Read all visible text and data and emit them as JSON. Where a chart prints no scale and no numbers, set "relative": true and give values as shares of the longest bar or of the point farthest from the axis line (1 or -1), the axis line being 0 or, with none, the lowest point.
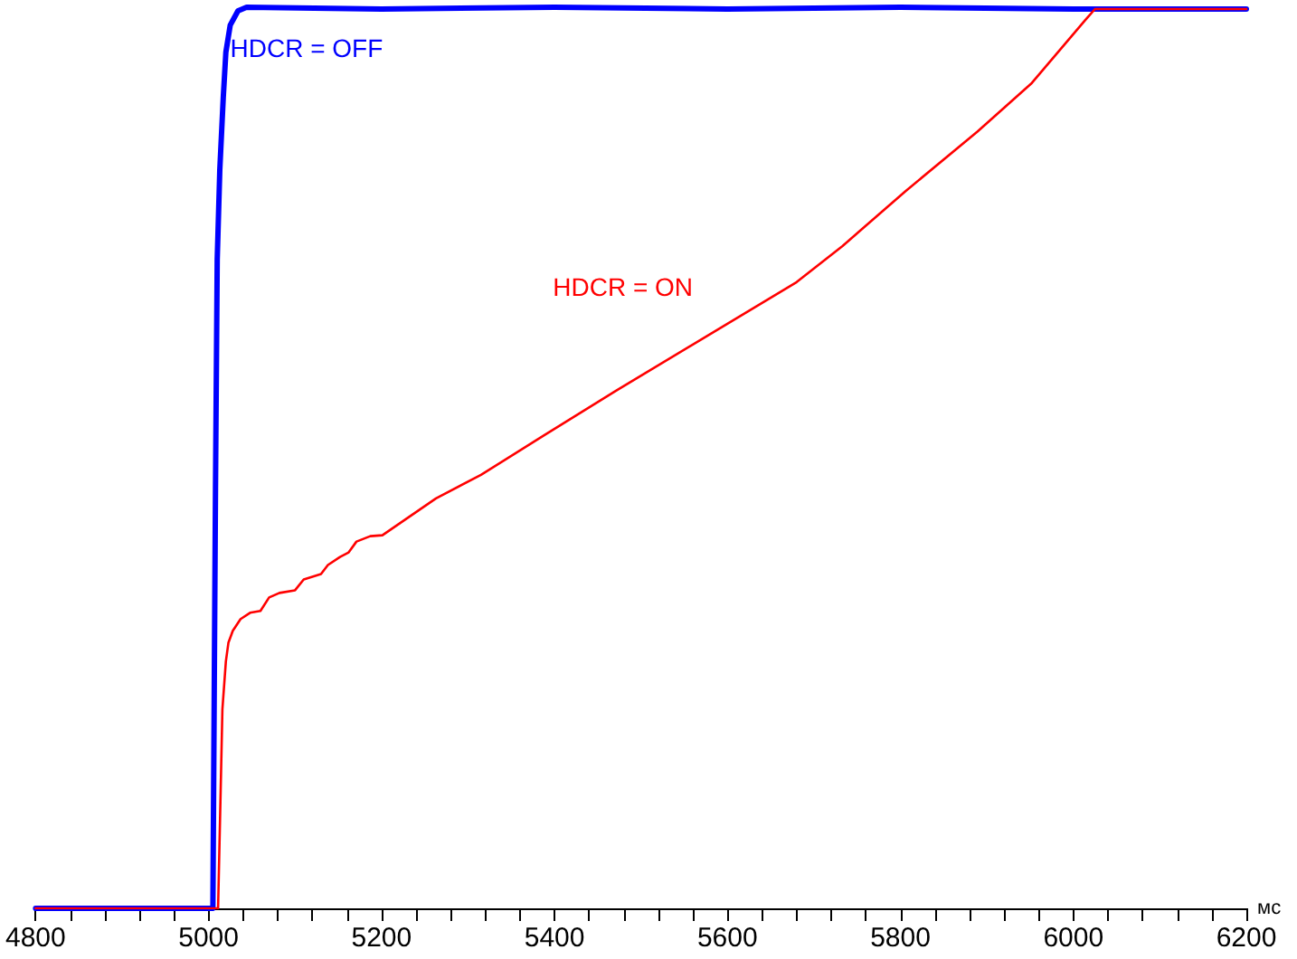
{
  "chart_data": {
    "type": "line",
    "relative": true,
    "xlabel": "мс",
    "xlim": [
      4800,
      6200
    ],
    "xticks": [
      4800,
      {
        "value": 4840,
        "label": null
      },
      {
        "value": 4880,
        "label": null
      },
      {
        "value": 4920,
        "label": null
      },
      {
        "value": 4960,
        "label": null
      },
      5000,
      {
        "value": 5040,
        "label": null
      },
      {
        "value": 5080,
        "label": null
      },
      {
        "value": 5120,
        "label": null
      },
      {
        "value": 5160,
        "label": null
      },
      5200,
      {
        "value": 5240,
        "label": null
      },
      {
        "value": 5280,
        "label": null
      },
      {
        "value": 5320,
        "label": null
      },
      {
        "value": 5360,
        "label": null
      },
      5400,
      {
        "value": 5440,
        "label": null
      },
      {
        "value": 5480,
        "label": null
      },
      {
        "value": 5520,
        "label": null
      },
      {
        "value": 5560,
        "label": null
      },
      5600,
      {
        "value": 5640,
        "label": null
      },
      {
        "value": 5680,
        "label": null
      },
      {
        "value": 5720,
        "label": null
      },
      {
        "value": 5760,
        "label": null
      },
      5800,
      {
        "value": 5840,
        "label": null
      },
      {
        "value": 5880,
        "label": null
      },
      {
        "value": 5920,
        "label": null
      },
      {
        "value": 5960,
        "label": null
      },
      6000,
      {
        "value": 6040,
        "label": null
      },
      {
        "value": 6080,
        "label": null
      },
      {
        "value": 6120,
        "label": null
      },
      {
        "value": 6160,
        "label": null
      },
      6200
    ],
    "tick_labels": "x",
    "grid": false,
    "legend": false,
    "marker": "none",
    "line_style": "solid",
    "series": [
      {
        "name": "HDCR = OFF",
        "color": "#0000ff",
        "x": [
          4800,
          5005,
          5008,
          5010,
          5013,
          5017,
          5020,
          5025,
          5034,
          5044,
          5200,
          5400,
          5600,
          5800,
          6000,
          6200
        ],
        "values": [
          0,
          0,
          0.465,
          0.72,
          0.82,
          0.9,
          0.95,
          0.98,
          0.996,
          1,
          0.998,
          1,
          0.998,
          1,
          0.998,
          0.998
        ]
      },
      {
        "name": "HDCR = ON",
        "color": "#ff0000",
        "x": [
          4800,
          5011,
          5014,
          5016,
          5020,
          5023,
          5028,
          5037,
          5048,
          5060,
          5070,
          5082,
          5100,
          5110,
          5130,
          5138,
          5152,
          5162,
          5171,
          5187,
          5201,
          5263,
          5315,
          5388,
          5472,
          5576,
          5680,
          5733,
          5806,
          5889,
          5952,
          6014,
          6025,
          6200
        ],
        "values": [
          0,
          0,
          0.131,
          0.221,
          0.274,
          0.295,
          0.308,
          0.321,
          0.328,
          0.33,
          0.345,
          0.35,
          0.353,
          0.365,
          0.371,
          0.381,
          0.39,
          0.395,
          0.407,
          0.413,
          0.414,
          0.455,
          0.481,
          0.525,
          0.575,
          0.635,
          0.695,
          0.735,
          0.796,
          0.862,
          0.916,
          0.986,
          0.998,
          0.998
        ]
      }
    ]
  }
}
